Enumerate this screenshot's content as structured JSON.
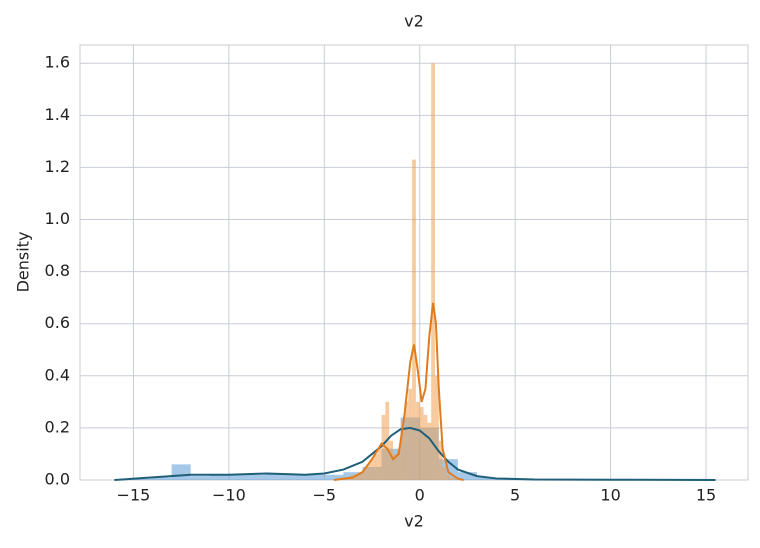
{
  "chart_data": {
    "type": "histogram",
    "title": "v2",
    "xlabel": "v2",
    "ylabel": "Density",
    "xlim": [
      -17.8,
      17.2
    ],
    "ylim": [
      0,
      1.67
    ],
    "xticks": [
      {
        "value": -15,
        "label": "−15"
      },
      {
        "value": -10,
        "label": "−10"
      },
      {
        "value": -5,
        "label": "−5"
      },
      0,
      5,
      10,
      15
    ],
    "yticks": [
      {
        "value": 0,
        "label": "0.0"
      },
      0.2,
      0.4,
      0.6,
      0.8,
      {
        "value": 1,
        "label": "1.0"
      },
      1.2,
      1.4,
      1.6
    ],
    "grid": true,
    "hist": [
      {
        "color": "#5b9bd5",
        "bins": [
          -16,
          -15,
          -14,
          -13,
          -12,
          -11,
          -10,
          -9,
          -8,
          -7,
          -6,
          -5,
          -4,
          -3,
          -2,
          -1,
          0,
          1,
          2,
          3,
          4,
          5,
          6,
          7,
          8,
          9,
          10,
          11,
          12,
          13,
          14,
          15
        ],
        "values": [
          0.003,
          0.005,
          0.01,
          0.06,
          0.015,
          0.02,
          0.02,
          0.02,
          0.025,
          0.02,
          0.02,
          0.02,
          0.03,
          0.05,
          0.12,
          0.24,
          0.2,
          0.08,
          0.03,
          0.01,
          0.005,
          0.003,
          0.002,
          0.002,
          0.001,
          0.001,
          0.001,
          0.001,
          0.001,
          0.001,
          0.001
        ]
      },
      {
        "color": "#f0a050",
        "bins": [
          -4,
          -3.8,
          -3.6,
          -3.4,
          -3.2,
          -3,
          -2.8,
          -2.6,
          -2.4,
          -2.2,
          -2,
          -1.8,
          -1.6,
          -1.4,
          -1.2,
          -1,
          -0.8,
          -0.6,
          -0.4,
          -0.2,
          0,
          0.2,
          0.4,
          0.6,
          0.8,
          1,
          1.2,
          1.4,
          1.6,
          1.8,
          2
        ],
        "values": [
          0.01,
          0.01,
          0.02,
          0.02,
          0.03,
          0.04,
          0.06,
          0.08,
          0.1,
          0.12,
          0.25,
          0.3,
          0.15,
          0.1,
          0.12,
          0.2,
          0.3,
          0.35,
          1.23,
          0.3,
          0.28,
          0.25,
          0.22,
          1.6,
          0.4,
          0.15,
          0.05,
          0.02,
          0.01,
          0.005
        ]
      }
    ],
    "kde": [
      {
        "color": "#1f5f7a",
        "x": [
          -16,
          -14,
          -12,
          -10,
          -8,
          -6,
          -5,
          -4,
          -3,
          -2,
          -1.5,
          -1,
          -0.5,
          0,
          0.5,
          1,
          1.5,
          2,
          3,
          4,
          6,
          10,
          15.5
        ],
        "values": [
          0,
          0.01,
          0.02,
          0.02,
          0.025,
          0.02,
          0.025,
          0.04,
          0.07,
          0.13,
          0.17,
          0.195,
          0.2,
          0.19,
          0.16,
          0.11,
          0.07,
          0.04,
          0.015,
          0.006,
          0.002,
          0.001,
          0
        ]
      },
      {
        "color": "#e07b20",
        "x": [
          -4.5,
          -3.5,
          -3,
          -2.5,
          -2,
          -1.7,
          -1.4,
          -1.1,
          -0.8,
          -0.5,
          -0.3,
          -0.1,
          0.1,
          0.3,
          0.5,
          0.7,
          0.85,
          1,
          1.2,
          1.5,
          2,
          2.3
        ],
        "values": [
          0,
          0.01,
          0.03,
          0.08,
          0.14,
          0.12,
          0.08,
          0.1,
          0.25,
          0.45,
          0.52,
          0.42,
          0.3,
          0.35,
          0.55,
          0.68,
          0.6,
          0.35,
          0.12,
          0.03,
          0.005,
          0
        ]
      }
    ]
  }
}
